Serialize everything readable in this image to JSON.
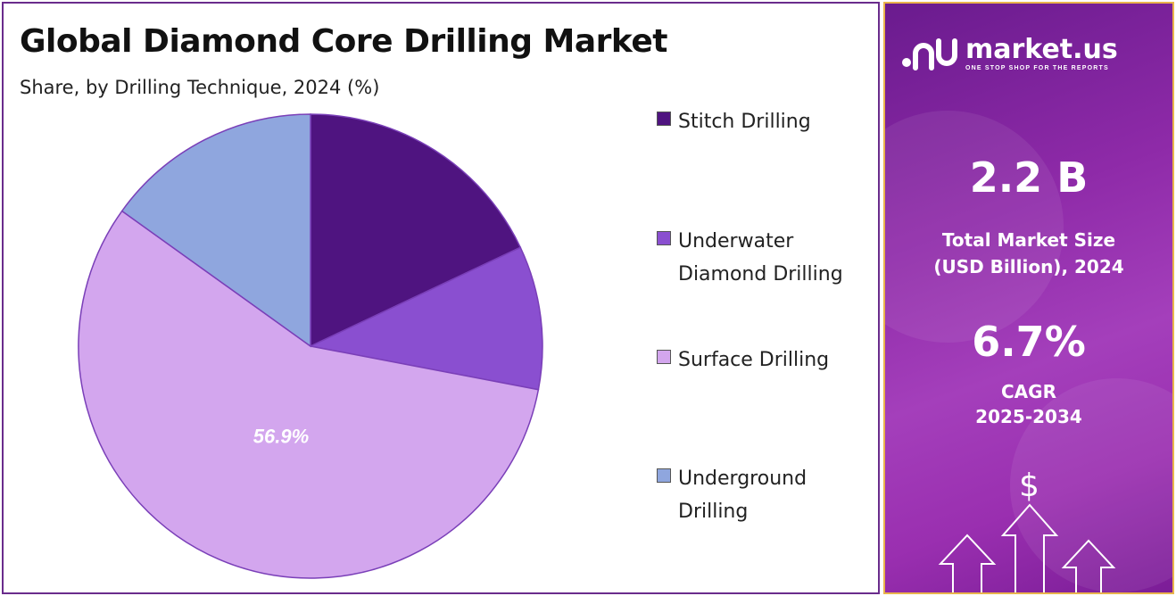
{
  "chart_data": {
    "type": "pie",
    "title": "Global Diamond Core Drilling Market",
    "subtitle": "Share, by Drilling Technique, 2024 (%)",
    "slices": [
      {
        "label": "Stitch Drilling",
        "value": 18.0,
        "color": "#4f1480",
        "shown_label": ""
      },
      {
        "label": "Underwater Diamond Drilling",
        "value": 10.0,
        "color": "#8a4fd0",
        "shown_label": ""
      },
      {
        "label": "Surface Drilling",
        "value": 56.9,
        "color": "#d3a6ee",
        "shown_label": "56.9%"
      },
      {
        "label": "Underground Drilling",
        "value": 15.1,
        "color": "#8fa6de",
        "shown_label": ""
      }
    ],
    "start_angle": "12 o'clock",
    "direction": "clockwise",
    "legend_position": "right"
  },
  "legend_items": [
    {
      "label": "Stitch Drilling",
      "color": "#4f1480"
    },
    {
      "label": "Underwater Diamond Drilling",
      "color": "#8a4fd0"
    },
    {
      "label": "Surface Drilling",
      "color": "#d3a6ee"
    },
    {
      "label": "Underground Drilling",
      "color": "#8fa6de"
    }
  ],
  "side_panel": {
    "logo_name": "market.us",
    "logo_tagline": "ONE STOP SHOP FOR THE REPORTS",
    "market_size_value": "2.2 B",
    "market_size_label_line1": "Total Market Size",
    "market_size_label_line2": "(USD Billion), 2024",
    "cagr_value": "6.7%",
    "cagr_label_line1": "CAGR",
    "cagr_label_line2": "2025-2034",
    "dollar_symbol": "$"
  },
  "colors": {
    "panel_border": "#6a2c8c",
    "side_border": "#e9b44c",
    "side_gradient_start": "#6a1b8e",
    "side_gradient_end": "#7b1d97"
  }
}
